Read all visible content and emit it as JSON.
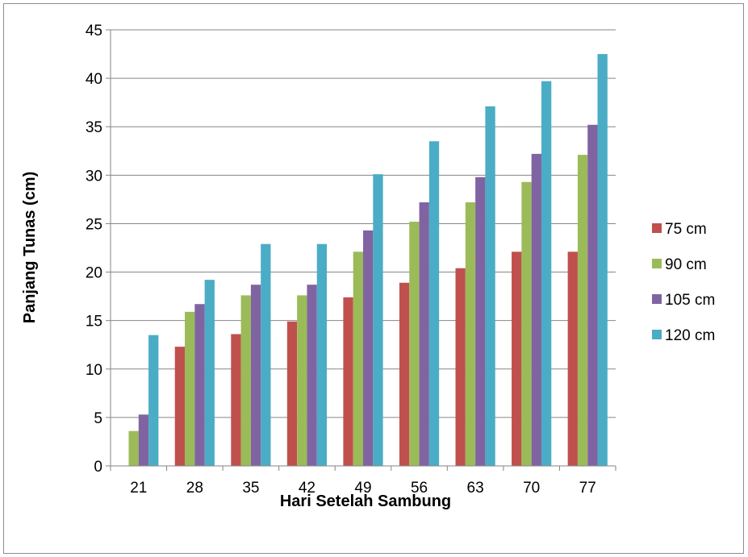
{
  "chart_data": {
    "type": "bar",
    "xlabel": "Hari Setelah Sambung",
    "ylabel": "Panjang Tunas (cm)",
    "ylim": [
      0,
      45
    ],
    "yticks": [
      0,
      5,
      10,
      15,
      20,
      25,
      30,
      35,
      40,
      45
    ],
    "grid": true,
    "legend_position": "right",
    "categories": [
      "21",
      "28",
      "35",
      "42",
      "49",
      "56",
      "63",
      "70",
      "77"
    ],
    "series": [
      {
        "name": "75 cm",
        "color": "#c0504d",
        "values": [
          0,
          12.3,
          13.6,
          14.9,
          17.4,
          18.9,
          20.4,
          22.1,
          22.1
        ]
      },
      {
        "name": "90 cm",
        "color": "#9bbb59",
        "values": [
          3.6,
          15.9,
          17.6,
          17.6,
          22.1,
          25.2,
          27.2,
          29.3,
          32.1
        ]
      },
      {
        "name": "105 cm",
        "color": "#8064a2",
        "values": [
          5.3,
          16.7,
          18.7,
          18.7,
          24.3,
          27.2,
          29.8,
          32.2,
          35.2
        ]
      },
      {
        "name": "120 cm",
        "color": "#4bacc6",
        "values": [
          13.5,
          19.2,
          22.9,
          22.9,
          30.1,
          33.5,
          37.1,
          39.7,
          42.5
        ]
      }
    ]
  }
}
